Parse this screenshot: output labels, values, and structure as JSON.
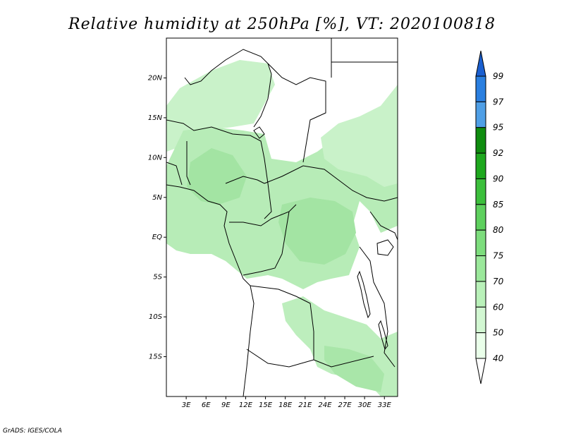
{
  "title": "Relative humidity at 250hPa [%], VT: 2020100818",
  "credit": "GrADS: IGES/COLA",
  "map": {
    "lon_range": [
      0,
      35
    ],
    "lat_range": [
      -20,
      25
    ],
    "lat_ticks": [
      {
        "value": 20,
        "label": "20N"
      },
      {
        "value": 15,
        "label": "15N"
      },
      {
        "value": 10,
        "label": "10N"
      },
      {
        "value": 5,
        "label": "5N"
      },
      {
        "value": 0,
        "label": "EQ"
      },
      {
        "value": -5,
        "label": "5S"
      },
      {
        "value": -10,
        "label": "10S"
      },
      {
        "value": -15,
        "label": "15S"
      }
    ],
    "lon_ticks": [
      {
        "value": 3,
        "label": "3E"
      },
      {
        "value": 6,
        "label": "6E"
      },
      {
        "value": 9,
        "label": "9E"
      },
      {
        "value": 12,
        "label": "12E"
      },
      {
        "value": 15,
        "label": "15E"
      },
      {
        "value": 18,
        "label": "18E"
      },
      {
        "value": 21,
        "label": "21E"
      },
      {
        "value": 24,
        "label": "24E"
      },
      {
        "value": 27,
        "label": "27E"
      },
      {
        "value": 30,
        "label": "30E"
      },
      {
        "value": 33,
        "label": "33E"
      }
    ],
    "humidity_field": {
      "units": "%",
      "shaded_level_range": [
        60,
        75
      ]
    }
  },
  "colorbar": {
    "levels": [
      "40",
      "50",
      "60",
      "70",
      "75",
      "80",
      "85",
      "90",
      "92",
      "95",
      "97",
      "99"
    ],
    "colors": [
      "#ffffff",
      "#eaffea",
      "#d2f7d2",
      "#b9f1b9",
      "#9be89b",
      "#7ddd7d",
      "#5ed05e",
      "#3cbf3c",
      "#1ea81e",
      "#0f8c0f",
      "#4f9fe6",
      "#2a7fe0",
      "#1a5fd0"
    ]
  }
}
